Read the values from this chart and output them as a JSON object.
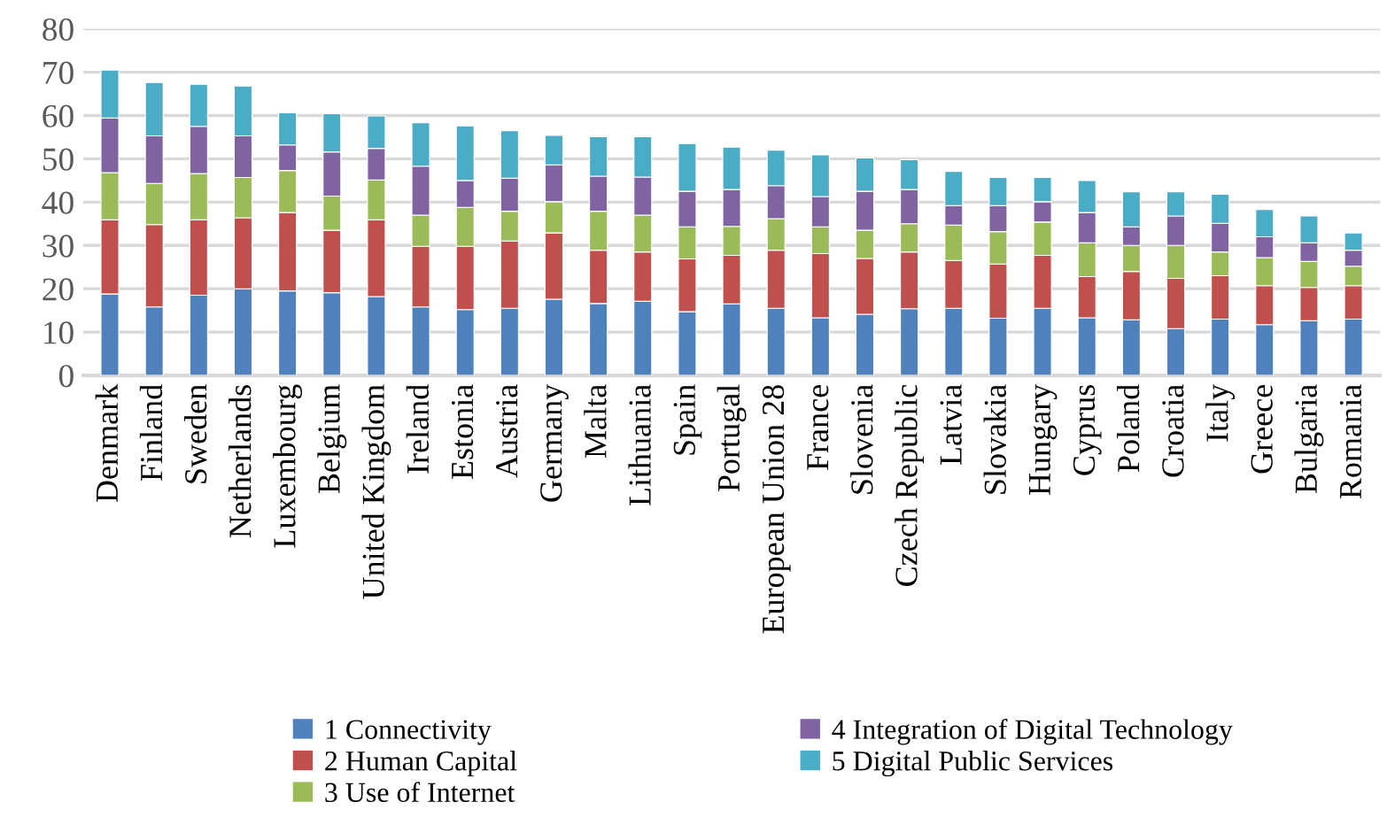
{
  "chart_data": {
    "type": "bar",
    "stacked": true,
    "categories": [
      "Denmark",
      "Finland",
      "Sweden",
      "Netherlands",
      "Luxembourg",
      "Belgium",
      "United Kingdom",
      "Ireland",
      "Estonia",
      "Austria",
      "Germany",
      "Malta",
      "Lithuania",
      "Spain",
      "Portugal",
      "European Union 28",
      "France",
      "Slovenia",
      "Czech Republic",
      "Latvia",
      "Slovakia",
      "Hungary",
      "Cyprus",
      "Poland",
      "Croatia",
      "Italy",
      "Greece",
      "Bulgaria",
      "Romania"
    ],
    "series": [
      {
        "name": "1 Connectivity",
        "color": "#4f81bd",
        "values": [
          18.8,
          15.8,
          18.5,
          20.0,
          19.5,
          19.1,
          18.2,
          15.8,
          15.2,
          15.5,
          17.6,
          16.6,
          17.1,
          14.7,
          16.5,
          15.5,
          13.3,
          14.1,
          15.4,
          15.5,
          13.2,
          15.5,
          13.3,
          12.8,
          10.8,
          13.0,
          11.7,
          12.6,
          13.0
        ]
      },
      {
        "name": "2 Human Capital",
        "color": "#c0504d",
        "values": [
          17.1,
          19.0,
          17.4,
          16.4,
          18.1,
          14.4,
          17.7,
          14.0,
          14.6,
          15.5,
          15.3,
          12.3,
          11.4,
          12.2,
          11.2,
          13.4,
          14.8,
          12.9,
          13.1,
          11.0,
          12.5,
          12.2,
          9.5,
          11.2,
          11.6,
          10.0,
          9.0,
          7.7,
          7.7
        ]
      },
      {
        "name": "3 Use of Internet",
        "color": "#9bbb59",
        "values": [
          10.9,
          9.5,
          10.7,
          9.3,
          9.7,
          7.9,
          9.2,
          7.2,
          9.0,
          6.9,
          7.2,
          9.0,
          8.5,
          7.4,
          6.7,
          7.3,
          6.2,
          6.5,
          6.5,
          8.2,
          7.5,
          7.7,
          7.8,
          6.0,
          7.6,
          5.5,
          6.5,
          6.0,
          4.5
        ]
      },
      {
        "name": "4 Integration of Digital Technology",
        "color": "#8064a2",
        "values": [
          12.6,
          11.0,
          10.9,
          9.6,
          5.9,
          10.2,
          7.3,
          11.3,
          6.2,
          7.6,
          8.5,
          8.1,
          8.8,
          8.2,
          8.5,
          7.6,
          7.0,
          9.0,
          7.9,
          4.5,
          6.0,
          4.7,
          7.0,
          4.3,
          6.8,
          6.6,
          4.8,
          4.3,
          3.7
        ]
      },
      {
        "name": "5 Digital Public Services",
        "color": "#4bacc6",
        "values": [
          11.1,
          12.3,
          9.7,
          11.5,
          7.4,
          8.8,
          7.5,
          10.0,
          12.6,
          11.0,
          6.8,
          9.1,
          9.3,
          11.0,
          9.8,
          8.2,
          9.6,
          7.7,
          6.9,
          7.9,
          6.5,
          5.6,
          7.4,
          8.1,
          5.6,
          6.7,
          6.3,
          6.2,
          4.0
        ]
      }
    ],
    "ylim": [
      0,
      80
    ],
    "yticks": [
      0,
      10,
      20,
      30,
      40,
      50,
      60,
      70,
      80
    ],
    "grid": "y",
    "legend": "bottom"
  }
}
